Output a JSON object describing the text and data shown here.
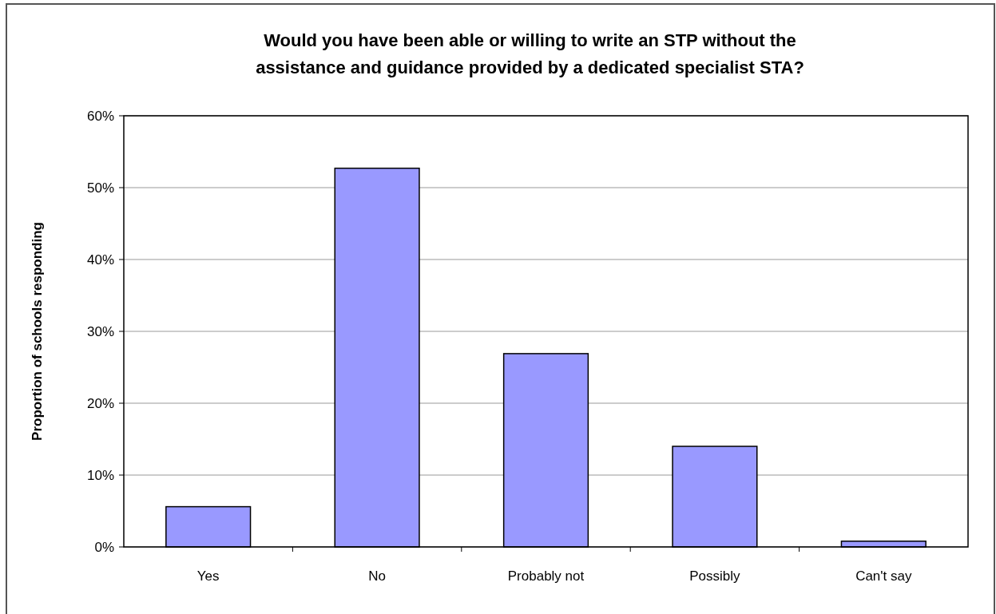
{
  "chart_data": {
    "type": "bar",
    "title": "Would you have been able or willing to write an STP without the assistance and guidance provided by a dedicated specialist STA?",
    "ylabel": "Proportion of schools responding",
    "categories": [
      "Yes",
      "No",
      "Probably not",
      "Possibly",
      "Can't say"
    ],
    "values": [
      5.6,
      52.7,
      26.9,
      14,
      0.8
    ],
    "color": "#9999ff",
    "ylim": [
      0,
      60
    ],
    "yticks": [
      {
        "value": 0,
        "label": "0%"
      },
      {
        "value": 10,
        "label": "10%"
      },
      {
        "value": 20,
        "label": "20%"
      },
      {
        "value": 30,
        "label": "30%"
      },
      {
        "value": 40,
        "label": "40%"
      },
      {
        "value": 50,
        "label": "50%"
      },
      {
        "value": 60,
        "label": "60%"
      }
    ],
    "grid": "y"
  }
}
